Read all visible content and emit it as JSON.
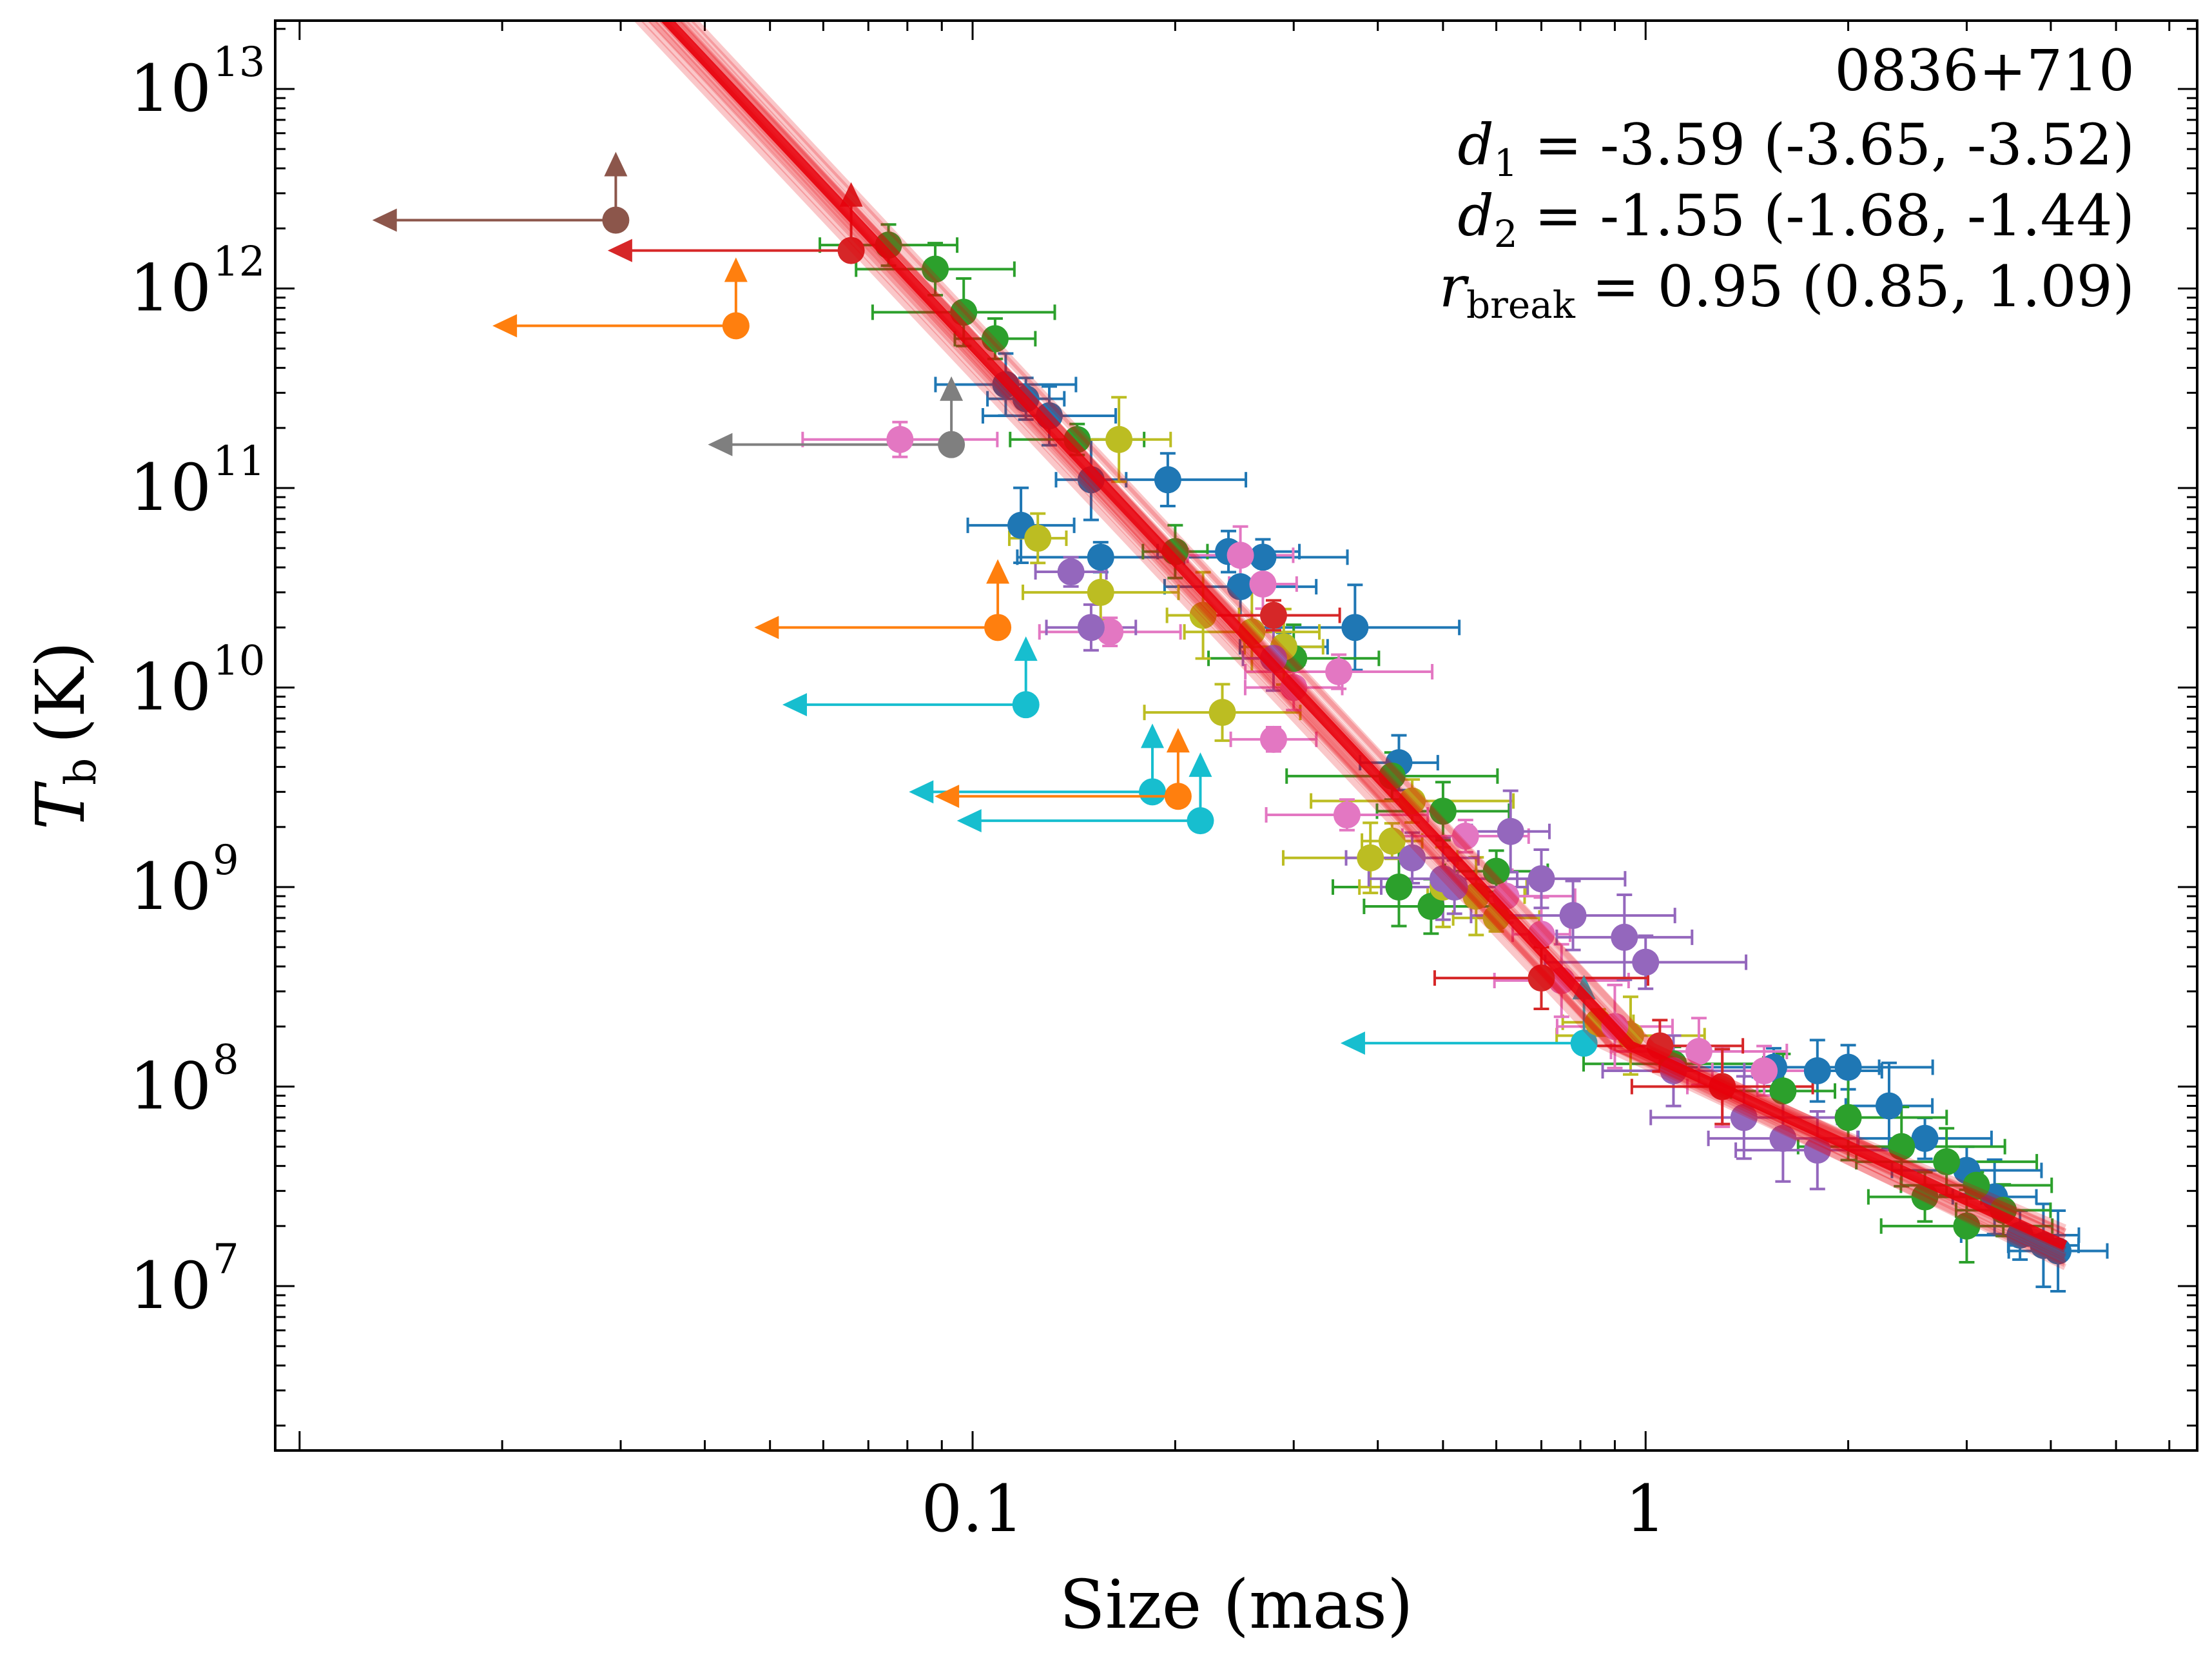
{
  "chart_data": {
    "type": "scatter",
    "xscale": "log",
    "yscale": "log",
    "xlim": [
      0.0092,
      6.6
    ],
    "ylim": [
      1500000,
      22000000000000
    ],
    "xlabel": "Size (mas)",
    "ylabel": {
      "main": "T",
      "sub": "b",
      "unit": "(K)"
    },
    "grid": false,
    "x_tick_labels": [
      {
        "value": 0.1,
        "text": "0.1"
      },
      {
        "value": 1,
        "text": "1"
      }
    ],
    "y_tick_labels": [
      {
        "value": 10000000,
        "base": "10",
        "exp": "7"
      },
      {
        "value": 100000000,
        "base": "10",
        "exp": "8"
      },
      {
        "value": 1000000000,
        "base": "10",
        "exp": "9"
      },
      {
        "value": 10000000000,
        "base": "10",
        "exp": "10"
      },
      {
        "value": 100000000000,
        "base": "10",
        "exp": "11"
      },
      {
        "value": 1000000000000,
        "base": "10",
        "exp": "12"
      },
      {
        "value": 10000000000000,
        "base": "10",
        "exp": "13"
      }
    ],
    "annotation": {
      "source": "0836+710",
      "d1": {
        "label": "d",
        "sub": "1",
        "text": "= -3.59 (-3.65, -3.52)"
      },
      "d2": {
        "label": "d",
        "sub": "2",
        "text": "= -1.55 (-1.68, -1.44)"
      },
      "rbreak": {
        "label": "r",
        "sub": "break",
        "text": "= 0.95 (0.85, 1.09)"
      }
    },
    "fit": {
      "name": "broken power law",
      "color": "#e8000b",
      "break_size": 0.95,
      "d1": -3.59,
      "d2": -1.55,
      "x_range": [
        0.02,
        4.2
      ],
      "tb_at_break": 160000000
    },
    "colors": {
      "blue": "#1f77b4",
      "orange": "#ff7f0e",
      "green": "#2ca02c",
      "red": "#d62728",
      "purple": "#9467bd",
      "brown": "#8c564b",
      "pink": "#e377c2",
      "gray": "#7f7f7f",
      "olive": "#bcbd22",
      "cyan": "#17becf"
    },
    "limits": [
      {
        "color": "brown",
        "x": 0.0295,
        "y": 2200000000000
      },
      {
        "color": "red",
        "x": 0.066,
        "y": 1550000000000
      },
      {
        "color": "orange",
        "x": 0.0445,
        "y": 650000000000
      },
      {
        "color": "gray",
        "x": 0.093,
        "y": 165000000000
      },
      {
        "color": "orange",
        "x": 0.109,
        "y": 20000000000
      },
      {
        "color": "cyan",
        "x": 0.12,
        "y": 8200000000
      },
      {
        "color": "cyan",
        "x": 0.185,
        "y": 3000000000
      },
      {
        "color": "orange",
        "x": 0.202,
        "y": 2850000000
      },
      {
        "color": "cyan",
        "x": 0.218,
        "y": 2150000000
      },
      {
        "color": "cyan",
        "x": 0.81,
        "y": 165000000
      }
    ],
    "series": [
      {
        "name": "blue",
        "color": "blue",
        "points": [
          [
            0.112,
            330000000000
          ],
          [
            0.12,
            280000000000
          ],
          [
            0.13,
            230000000000
          ],
          [
            0.15,
            110000000000
          ],
          [
            0.195,
            110000000000
          ],
          [
            0.118,
            65000000000
          ],
          [
            0.155,
            45000000000
          ],
          [
            0.24,
            48000000000
          ],
          [
            0.27,
            45000000000
          ],
          [
            0.25,
            32000000000
          ],
          [
            0.29,
            16000000000
          ],
          [
            0.37,
            20000000000
          ],
          [
            0.43,
            4200000000
          ],
          [
            1.55,
            125000000
          ],
          [
            1.8,
            120000000
          ],
          [
            2.0,
            125000000
          ],
          [
            2.3,
            80000000
          ],
          [
            2.6,
            55000000
          ],
          [
            3.0,
            38000000
          ],
          [
            3.3,
            28000000
          ],
          [
            3.6,
            18000000
          ],
          [
            3.9,
            16000000
          ],
          [
            4.1,
            15000000
          ]
        ]
      },
      {
        "name": "green",
        "color": "green",
        "points": [
          [
            0.075,
            1650000000000
          ],
          [
            0.088,
            1250000000000
          ],
          [
            0.097,
            760000000000
          ],
          [
            0.108,
            560000000000
          ],
          [
            0.143,
            175000000000
          ],
          [
            0.2,
            48000000000
          ],
          [
            0.3,
            14000000000
          ],
          [
            0.42,
            3600000000
          ],
          [
            0.5,
            2400000000
          ],
          [
            0.43,
            1000000000
          ],
          [
            0.48,
            800000000
          ],
          [
            0.6,
            1200000000
          ],
          [
            1.1,
            130000000
          ],
          [
            1.6,
            95000000
          ],
          [
            2.0,
            70000000
          ],
          [
            2.4,
            50000000
          ],
          [
            2.8,
            42000000
          ],
          [
            3.1,
            32000000
          ],
          [
            2.6,
            28000000
          ],
          [
            3.4,
            24000000
          ],
          [
            3.0,
            20000000
          ]
        ]
      },
      {
        "name": "olive",
        "color": "olive",
        "points": [
          [
            0.165,
            175000000000
          ],
          [
            0.125,
            56000000000
          ],
          [
            0.155,
            30000000000
          ],
          [
            0.22,
            23000000000
          ],
          [
            0.26,
            19000000000
          ],
          [
            0.235,
            7500000000
          ],
          [
            0.29,
            16000000000
          ],
          [
            0.45,
            2700000000
          ],
          [
            0.42,
            1700000000
          ],
          [
            0.39,
            1400000000
          ],
          [
            0.5,
            1000000000
          ],
          [
            0.56,
            900000000
          ],
          [
            0.6,
            700000000
          ],
          [
            0.85,
            210000000
          ],
          [
            0.95,
            180000000
          ]
        ]
      },
      {
        "name": "pink",
        "color": "pink",
        "points": [
          [
            0.078,
            175000000000
          ],
          [
            0.16,
            19000000000
          ],
          [
            0.25,
            46000000000
          ],
          [
            0.27,
            33000000000
          ],
          [
            0.3,
            10000000000
          ],
          [
            0.35,
            12000000000
          ],
          [
            0.28,
            5500000000
          ],
          [
            0.36,
            2300000000
          ],
          [
            0.54,
            1800000000
          ],
          [
            0.62,
            900000000
          ],
          [
            0.7,
            580000000
          ],
          [
            0.75,
            340000000
          ],
          [
            0.9,
            200000000
          ],
          [
            1.2,
            150000000
          ],
          [
            1.5,
            120000000
          ],
          [
            1.3,
            100000000
          ]
        ]
      },
      {
        "name": "purple",
        "color": "purple",
        "points": [
          [
            0.14,
            38000000000
          ],
          [
            0.15,
            20000000000
          ],
          [
            0.28,
            14000000000
          ],
          [
            0.45,
            1400000000
          ],
          [
            0.5,
            1100000000
          ],
          [
            0.52,
            1000000000
          ],
          [
            0.63,
            1900000000
          ],
          [
            0.7,
            1100000000
          ],
          [
            0.78,
            720000000
          ],
          [
            0.93,
            560000000
          ],
          [
            1.0,
            420000000
          ],
          [
            1.1,
            120000000
          ],
          [
            1.4,
            70000000
          ],
          [
            1.6,
            55000000
          ],
          [
            1.8,
            48000000
          ]
        ]
      },
      {
        "name": "red",
        "color": "red",
        "points": [
          [
            0.28,
            23000000000
          ],
          [
            0.7,
            350000000
          ],
          [
            1.05,
            160000000
          ],
          [
            1.3,
            100000000
          ]
        ]
      }
    ]
  }
}
